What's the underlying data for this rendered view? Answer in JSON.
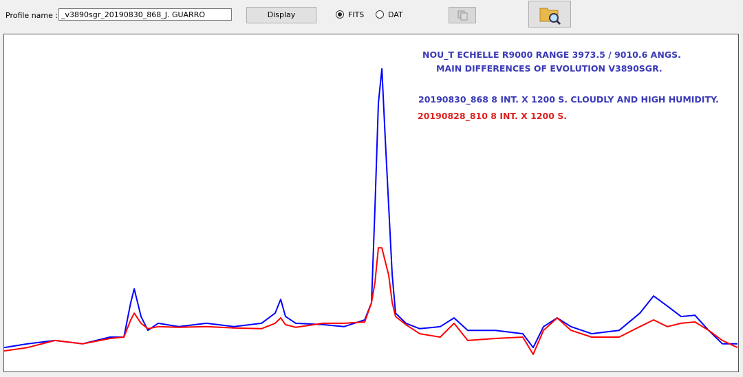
{
  "toolbar": {
    "profile_label": "Profile name :",
    "profile_value": "_v3890sgr_20190830_868_J. GUARRO",
    "display_button": "Display",
    "radio_fits": "FITS",
    "radio_dat": "DAT"
  },
  "annotations": [
    {
      "text": "NOU_T ECHELLE   R9000   RANGE 3973.5 / 9010.6 ANGS."
    },
    {
      "text": "MAIN DIFFERENCES OF EVOLUTION V3890SGR."
    },
    {
      "text": "20190830_868  8 INT. X 1200 S. CLOUDLY AND HIGH HUMIDITY."
    },
    {
      "text": "20190828_810  8 INT. X 1200 S."
    }
  ],
  "chart_data": {
    "type": "line",
    "xlim": [
      3973.5,
      9010.6
    ],
    "ylim": [
      0,
      100
    ],
    "x": [
      3974,
      4134,
      4323,
      4512,
      4701,
      4796,
      4843,
      4867,
      4914,
      4961,
      5032,
      5174,
      5363,
      5552,
      5741,
      5835,
      5873,
      5906,
      5977,
      6166,
      6308,
      6450,
      6497,
      6521,
      6544,
      6568,
      6591,
      6615,
      6639,
      6662,
      6733,
      6828,
      6969,
      7064,
      7158,
      7347,
      7536,
      7607,
      7678,
      7772,
      7867,
      8009,
      8198,
      8340,
      8434,
      8529,
      8623,
      8718,
      8812,
      8907,
      9010
    ],
    "series": [
      {
        "color": "#0000ff",
        "values": [
          7.1,
          8.2,
          9.2,
          8.2,
          10.2,
          10.2,
          20.4,
          24.5,
          16.3,
          12.2,
          14.3,
          13.3,
          14.3,
          13.3,
          14.3,
          17.3,
          21.4,
          16.3,
          14.3,
          13.9,
          13.3,
          15.3,
          20.4,
          49.0,
          79.6,
          89.8,
          69.4,
          49.0,
          28.6,
          17.3,
          14.3,
          12.7,
          13.3,
          15.9,
          12.2,
          12.2,
          11.2,
          7.1,
          13.3,
          15.9,
          13.3,
          11.2,
          12.2,
          17.3,
          22.4,
          19.4,
          16.3,
          16.7,
          12.2,
          8.2,
          8.2
        ]
      },
      {
        "color": "#ff0000",
        "values": [
          6.1,
          7.1,
          9.2,
          8.2,
          9.8,
          10.2,
          15.3,
          17.3,
          14.3,
          12.7,
          13.3,
          13.1,
          13.3,
          12.9,
          12.7,
          14.3,
          15.9,
          13.9,
          13.1,
          14.3,
          14.3,
          14.7,
          20.4,
          26.5,
          36.7,
          36.7,
          32.7,
          28.6,
          20.4,
          16.3,
          13.9,
          11.2,
          10.2,
          14.3,
          9.2,
          9.8,
          10.2,
          5.1,
          12.2,
          15.9,
          12.2,
          10.2,
          10.2,
          13.3,
          15.3,
          13.3,
          14.3,
          14.7,
          12.2,
          9.2,
          7.1
        ]
      }
    ]
  }
}
